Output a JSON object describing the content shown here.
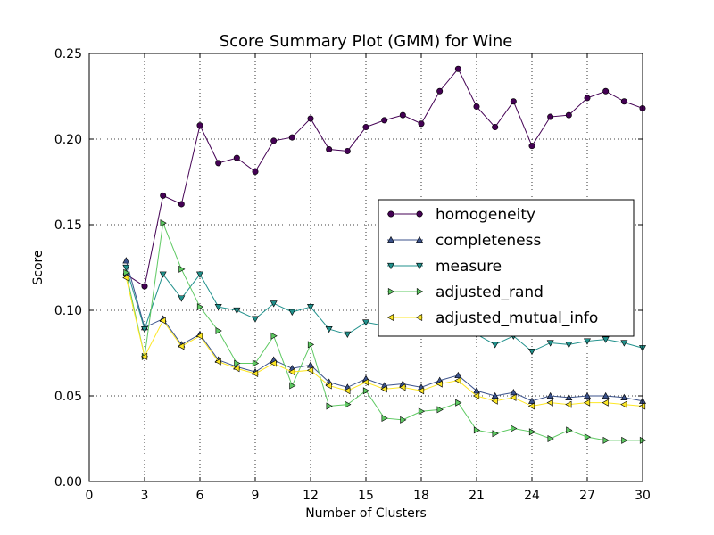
{
  "chart_data": {
    "type": "line",
    "title": "Score Summary Plot (GMM) for Wine",
    "xlabel": "Number of Clusters",
    "ylabel": "Score",
    "xlim": [
      0,
      30
    ],
    "ylim": [
      0.0,
      0.25
    ],
    "xticks": [
      "0",
      "3",
      "6",
      "9",
      "12",
      "15",
      "18",
      "21",
      "24",
      "27",
      "30"
    ],
    "yticks": [
      "0.00",
      "0.05",
      "0.10",
      "0.15",
      "0.20",
      "0.25"
    ],
    "grid": true,
    "legend_position": "center-right",
    "x": [
      2,
      3,
      4,
      5,
      6,
      7,
      8,
      9,
      10,
      11,
      12,
      13,
      14,
      15,
      16,
      17,
      18,
      19,
      20,
      21,
      22,
      23,
      24,
      25,
      26,
      27,
      28,
      29,
      30
    ],
    "series": [
      {
        "name": "homogeneity",
        "color": "#440154",
        "marker": "circle",
        "values": [
          0.121,
          0.114,
          0.167,
          0.162,
          0.208,
          0.186,
          0.189,
          0.181,
          0.199,
          0.201,
          0.212,
          0.194,
          0.193,
          0.207,
          0.211,
          0.214,
          0.209,
          0.228,
          0.241,
          0.219,
          0.207,
          0.222,
          0.196,
          0.213,
          0.214,
          0.224,
          0.228,
          0.222,
          0.218
        ]
      },
      {
        "name": "completeness",
        "color": "#3b528b",
        "marker": "triangle-up",
        "values": [
          0.129,
          0.09,
          0.095,
          0.08,
          0.086,
          0.071,
          0.067,
          0.064,
          0.071,
          0.066,
          0.068,
          0.058,
          0.055,
          0.06,
          0.056,
          0.057,
          0.055,
          0.059,
          0.062,
          0.053,
          0.05,
          0.052,
          0.047,
          0.05,
          0.049,
          0.05,
          0.05,
          0.049,
          0.047
        ]
      },
      {
        "name": "measure",
        "color": "#21918c",
        "marker": "triangle-down",
        "values": [
          0.125,
          0.089,
          0.121,
          0.107,
          0.121,
          0.102,
          0.1,
          0.095,
          0.104,
          0.099,
          0.102,
          0.089,
          0.086,
          0.093,
          0.091,
          0.093,
          0.09,
          0.095,
          0.1,
          0.086,
          0.08,
          0.085,
          0.076,
          0.081,
          0.08,
          0.082,
          0.083,
          0.081,
          0.078
        ]
      },
      {
        "name": "adjusted_rand",
        "color": "#5ec962",
        "marker": "triangle-right",
        "values": [
          0.122,
          0.073,
          0.151,
          0.124,
          0.102,
          0.088,
          0.069,
          0.069,
          0.085,
          0.056,
          0.08,
          0.044,
          0.045,
          0.053,
          0.037,
          0.036,
          0.041,
          0.042,
          0.046,
          0.03,
          0.028,
          0.031,
          0.029,
          0.025,
          0.03,
          0.026,
          0.024,
          0.024,
          0.024
        ]
      },
      {
        "name": "adjusted_mutual_info",
        "color": "#fde725",
        "marker": "triangle-left",
        "values": [
          0.119,
          0.073,
          0.094,
          0.079,
          0.085,
          0.07,
          0.066,
          0.063,
          0.069,
          0.064,
          0.065,
          0.056,
          0.053,
          0.058,
          0.054,
          0.055,
          0.053,
          0.057,
          0.059,
          0.05,
          0.047,
          0.049,
          0.044,
          0.046,
          0.045,
          0.046,
          0.046,
          0.045,
          0.044
        ]
      }
    ]
  }
}
